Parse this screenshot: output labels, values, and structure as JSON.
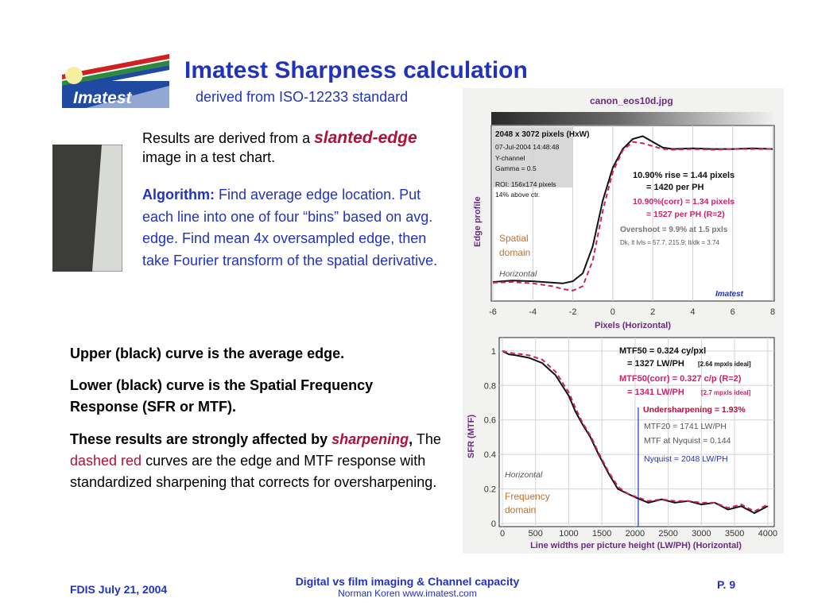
{
  "slide": {
    "title": "Imatest Sharpness calculation",
    "subtitle": "derived from ISO-12233 standard",
    "logo_text": "Imatest",
    "intro_pre": "Results are derived from a ",
    "intro_slanted": "slanted-edge",
    "intro_post": " image in a test chart.",
    "algorithm_label": "Algorithm:",
    "algorithm_text": " Find average edge location. Put each line into one of four “bins” based on avg. edge. Find mean 4x oversampled edge, then take Fourier transform of the spatial derivative.",
    "para1": "Upper (black) curve is the average edge.",
    "para2": "Lower (black) curve is the Spatial Frequency Response (SFR or MTF).",
    "para3_bold": "These results are strongly affected by ",
    "para3_sharp": "sharpening",
    "para3_comma": ",",
    "para3_the": "  The ",
    "para3_dashed": "dashed red",
    "para3_rest": " curves are the edge and MTF response with standardized sharpening that corrects for oversharpening.",
    "footer_left": "FDIS  July 21, 2004",
    "footer_center_1": "Digital vs film imaging & Channel capacity",
    "footer_center_2": "Norman Koren   www.imatest.com",
    "footer_right": "P. 9"
  },
  "colors": {
    "title_blue": "#2233bb",
    "accent_red": "#b0103a",
    "chart_red": "#d0206a",
    "chart_purple": "#6a2a80",
    "logo_blue": "#1f4aa0"
  },
  "chart_data": [
    {
      "type": "line",
      "file_title": "canon_eos10d.jpg",
      "ylabel": "Edge profile",
      "xlabel": "Pixels (Horizontal)",
      "xlim": [
        -6,
        8
      ],
      "x_ticks": [
        "-6",
        "-4",
        "-2",
        "0",
        "2",
        "4",
        "6",
        "8"
      ],
      "info_lines": [
        "2048 x 3072 pixels (HxW)",
        "07-Jul-2004 14:48:48",
        "Y-channel",
        "Gamma = 0.5",
        "ROI: 156x174 pixels",
        "14% above ctr."
      ],
      "annotations": {
        "rise1": "10.90% rise = 1.44 pixels",
        "rise2": "= 1420 per PH",
        "corr1": "10.90%(corr) = 1.34 pixels",
        "corr2": "= 1527 per PH  (R=2)",
        "overshoot": "Overshoot = 9.9% at 1.5 pxls",
        "levels": "Dk, lt lvls = 57.7, 215.9;  lt/dk = 3.74",
        "domain": "Spatial domain",
        "direction": "Horizontal",
        "brand": "Imatest"
      },
      "series": [
        {
          "style": "solid",
          "x": [
            -6,
            -5,
            -4,
            -3,
            -2.5,
            -2,
            -1.5,
            -1,
            -0.5,
            0,
            0.5,
            1,
            1.5,
            2,
            2.5,
            3,
            4,
            5,
            6,
            7,
            8
          ],
          "y": [
            0.05,
            0.06,
            0.055,
            0.045,
            0.04,
            0.055,
            0.11,
            0.3,
            0.62,
            0.85,
            0.98,
            1.05,
            1.07,
            1.03,
            0.99,
            0.98,
            0.985,
            0.98,
            0.98,
            0.985,
            0.98
          ]
        },
        {
          "style": "dashed",
          "x": [
            -6,
            -5,
            -4,
            -3,
            -2.5,
            -2,
            -1.5,
            -1,
            -0.5,
            0,
            0.5,
            1,
            1.5,
            2,
            2.5,
            3,
            4,
            5,
            6,
            7,
            8
          ],
          "y": [
            0.045,
            0.05,
            0.04,
            0.02,
            0.0,
            -0.01,
            0.02,
            0.2,
            0.55,
            0.82,
            0.97,
            1.03,
            1.02,
            1.0,
            0.98,
            0.975,
            0.98,
            0.975,
            0.98,
            0.98,
            0.98
          ]
        }
      ]
    },
    {
      "type": "line",
      "ylabel": "SFR (MTF)",
      "xlabel": "Line widths per picture height (LW/PH) (Horizontal)",
      "xlim": [
        0,
        4050
      ],
      "ylim": [
        0,
        1.05
      ],
      "x_ticks": [
        "0",
        "500",
        "1000",
        "1500",
        "2000",
        "2500",
        "3000",
        "3500",
        "4000"
      ],
      "y_ticks": [
        "0",
        "0.2",
        "0.4",
        "0.6",
        "0.8",
        "1"
      ],
      "annotations": {
        "mtf50_1": "MTF50 = 0.324 cy/pxl",
        "mtf50_2": "= 1327 LW/PH",
        "mtf50_ideal": "[2.64 mpxls ideal]",
        "corr_1": "MTF50(corr) = 0.327 c/p  (R=2)",
        "corr_2": "= 1341 LW/PH",
        "corr_ideal": "[2.7 mpxls ideal]",
        "under": "Undersharpening = 1.93%",
        "mtf20": "MTF20 = 1741 LW/PH",
        "nyq_mtf": "MTF at Nyquist = 0.144",
        "nyquist": "Nyquist = 2048  LW/PH",
        "direction": "Horizontal",
        "domain": "Frequency domain"
      },
      "nyquist_x": 2048,
      "series": [
        {
          "style": "solid",
          "x": [
            0,
            100,
            200,
            400,
            600,
            800,
            1000,
            1100,
            1200,
            1327,
            1450,
            1600,
            1741,
            1900,
            2048,
            2200,
            2400,
            2600,
            2800,
            3000,
            3200,
            3400,
            3600,
            3800,
            4000
          ],
          "y": [
            1.0,
            0.98,
            0.975,
            0.96,
            0.93,
            0.86,
            0.74,
            0.65,
            0.58,
            0.5,
            0.4,
            0.29,
            0.2,
            0.17,
            0.144,
            0.12,
            0.14,
            0.12,
            0.13,
            0.11,
            0.12,
            0.08,
            0.1,
            0.06,
            0.1
          ]
        },
        {
          "style": "dashed",
          "x": [
            0,
            100,
            200,
            400,
            600,
            800,
            1000,
            1100,
            1200,
            1341,
            1450,
            1600,
            1750,
            1900,
            2048,
            2200,
            2400,
            2600,
            2800,
            3000,
            3200,
            3400,
            3600,
            3800,
            4000
          ],
          "y": [
            1.0,
            0.99,
            0.985,
            0.975,
            0.95,
            0.88,
            0.76,
            0.67,
            0.59,
            0.5,
            0.41,
            0.3,
            0.21,
            0.17,
            0.15,
            0.13,
            0.14,
            0.13,
            0.13,
            0.12,
            0.12,
            0.09,
            0.11,
            0.07,
            0.11
          ]
        }
      ]
    }
  ]
}
